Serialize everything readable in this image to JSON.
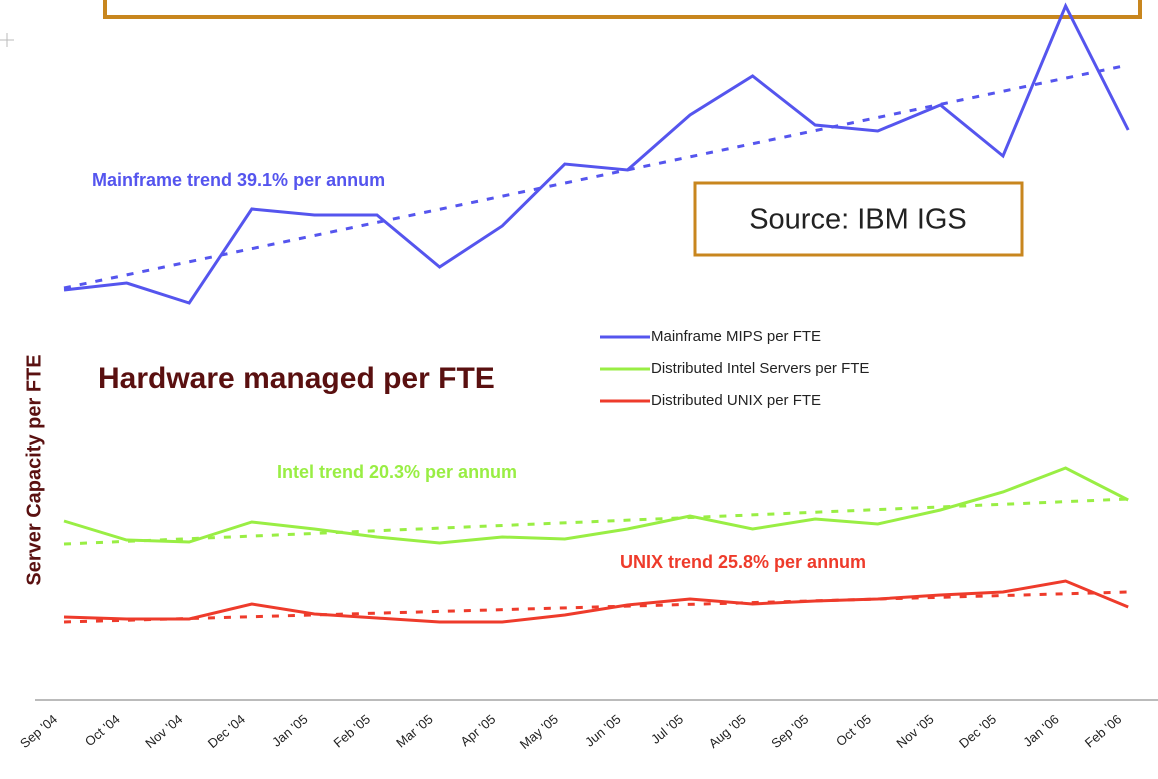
{
  "chart_data": {
    "type": "line",
    "title": "Hardware managed per FTE",
    "y_label": "Server Capacity per FTE",
    "source": "Source: IBM IGS",
    "annotations": [
      "Mainframe trend 39.1% per annum",
      "Intel trend 20.3% per annum",
      "UNIX trend 25.8% per annum"
    ],
    "categories": [
      "Sep '04",
      "Oct '04",
      "Nov '04",
      "Dec '04",
      "Jan '05",
      "Feb '05",
      "Mar '05",
      "Apr '05",
      "May '05",
      "Jun '05",
      "Jul '05",
      "Aug '05",
      "Sep '05",
      "Oct '05",
      "Nov '05",
      "Dec '05",
      "Jan '06",
      "Feb '06"
    ],
    "ylim": [
      0,
      700
    ],
    "series": [
      {
        "name": "Mainframe MIPS per FTE",
        "color": "#5555ee",
        "values": [
          410,
          417,
          397,
          491,
          485,
          485,
          433,
          474,
          536,
          530,
          585,
          624,
          575,
          569,
          595,
          544,
          694,
          570
        ],
        "trend": [
          412,
          635
        ]
      },
      {
        "name": "Distributed Intel Servers per FTE",
        "color": "#99ee44",
        "values": [
          179,
          160,
          158,
          178,
          171,
          163,
          157,
          163,
          161,
          171,
          184,
          171,
          181,
          176,
          190,
          208,
          232,
          200
        ],
        "trend": [
          156,
          201
        ]
      },
      {
        "name": "Distributed UNIX per FTE",
        "color": "#ee3b2b",
        "values": [
          83,
          81,
          81,
          96,
          86,
          82,
          78,
          78,
          85,
          95,
          101,
          96,
          99,
          101,
          105,
          108,
          119,
          93
        ],
        "trend": [
          78,
          108
        ]
      }
    ]
  }
}
